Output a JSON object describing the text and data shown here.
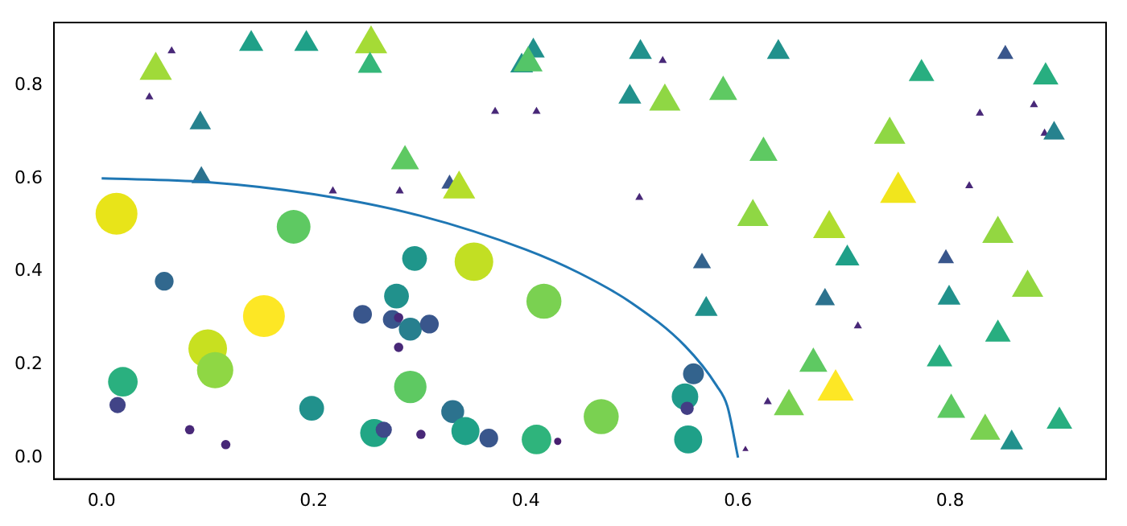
{
  "chart_data": {
    "type": "bubble",
    "xlim": [
      -0.045,
      0.947
    ],
    "ylim": [
      -0.046,
      0.935
    ],
    "xticks": [
      {
        "value": 0,
        "label": "0.0"
      },
      {
        "value": 0.2,
        "label": "0.2"
      },
      {
        "value": 0.4,
        "label": "0.4"
      },
      {
        "value": 0.6,
        "label": "0.6"
      },
      {
        "value": 0.8,
        "label": "0.8"
      }
    ],
    "yticks": [
      {
        "value": 0,
        "label": "0.0"
      },
      {
        "value": 0.2,
        "label": "0.2"
      },
      {
        "value": 0.4,
        "label": "0.4"
      },
      {
        "value": 0.6,
        "label": "0.6"
      },
      {
        "value": 0.8,
        "label": "0.8"
      }
    ],
    "grid": false,
    "legend": false,
    "series": [
      {
        "marker": "circle",
        "x": [
          0.014,
          0.059,
          0.153,
          0.1,
          0.107,
          0.02,
          0.015,
          0.083,
          0.117,
          0.181,
          0.198,
          0.246,
          0.295,
          0.278,
          0.274,
          0.28,
          0.291,
          0.309,
          0.28,
          0.351,
          0.417,
          0.291,
          0.331,
          0.343,
          0.257,
          0.266,
          0.301,
          0.365,
          0.41,
          0.43,
          0.471,
          0.558,
          0.55,
          0.552,
          0.553
        ],
        "values": [
          0.524,
          0.379,
          0.304,
          0.234,
          0.188,
          0.163,
          0.113,
          0.06,
          0.028,
          0.496,
          0.106,
          0.308,
          0.428,
          0.347,
          0.297,
          0.301,
          0.276,
          0.287,
          0.237,
          0.421,
          0.336,
          0.152,
          0.099,
          0.057,
          0.053,
          0.06,
          0.05,
          0.042,
          0.039,
          0.035,
          0.088,
          0.18,
          0.131,
          0.106,
          0.039
        ],
        "sizes": [
          1,
          0.2,
          1,
          0.85,
          0.75,
          0.5,
          0.15,
          0.05,
          0.05,
          0.65,
          0.35,
          0.2,
          0.35,
          0.35,
          0.2,
          0.05,
          0.3,
          0.2,
          0.05,
          0.85,
          0.7,
          0.6,
          0.3,
          0.45,
          0.45,
          0.15,
          0.05,
          0.2,
          0.5,
          0.03,
          0.7,
          0.25,
          0.4,
          0.1,
          0.45
        ],
        "colors": [
          "#e8e419",
          "#31688e",
          "#fde725",
          "#c8e020",
          "#8fd744",
          "#2ab07f",
          "#414487",
          "#482878",
          "#482878",
          "#5ec962",
          "#21918c",
          "#39568c",
          "#1f968b",
          "#21918c",
          "#39568c",
          "#482878",
          "#277f8e",
          "#39568c",
          "#482878",
          "#c2df23",
          "#7ad151",
          "#5ec962",
          "#2c728e",
          "#1fa187",
          "#21a685",
          "#3e4a89",
          "#482878",
          "#39568c",
          "#2fb47c",
          "#481f70",
          "#7ad151",
          "#33638d",
          "#1f9a8a",
          "#433e85",
          "#1fa088"
        ]
      },
      {
        "marker": "triangle",
        "x": [
          0.051,
          0.066,
          0.045,
          0.093,
          0.094,
          0.141,
          0.193,
          0.254,
          0.253,
          0.407,
          0.396,
          0.402,
          0.371,
          0.41,
          0.286,
          0.218,
          0.281,
          0.328,
          0.337,
          0.508,
          0.529,
          0.498,
          0.531,
          0.586,
          0.638,
          0.624,
          0.507,
          0.614,
          0.686,
          0.773,
          0.743,
          0.751,
          0.852,
          0.89,
          0.828,
          0.879,
          0.889,
          0.898,
          0.818,
          0.845,
          0.566,
          0.57,
          0.703,
          0.796,
          0.682,
          0.713,
          0.799,
          0.873,
          0.845,
          0.671,
          0.692,
          0.79,
          0.648,
          0.628,
          0.607,
          0.801,
          0.833,
          0.858,
          0.903
        ],
        "values": [
          0.832,
          0.874,
          0.775,
          0.719,
          0.602,
          0.889,
          0.889,
          0.889,
          0.842,
          0.874,
          0.842,
          0.848,
          0.744,
          0.744,
          0.637,
          0.573,
          0.573,
          0.588,
          0.577,
          0.871,
          0.853,
          0.775,
          0.765,
          0.786,
          0.871,
          0.655,
          0.559,
          0.517,
          0.492,
          0.825,
          0.694,
          0.57,
          0.867,
          0.818,
          0.74,
          0.758,
          0.697,
          0.697,
          0.584,
          0.481,
          0.418,
          0.319,
          0.428,
          0.428,
          0.34,
          0.283,
          0.343,
          0.365,
          0.265,
          0.202,
          0.145,
          0.212,
          0.11,
          0.12,
          0.018,
          0.103,
          0.057,
          0.032,
          0.078
        ],
        "sizes": [
          0.33,
          0.021,
          0.021,
          0.145,
          0.124,
          0.186,
          0.186,
          0.33,
          0.186,
          0.165,
          0.165,
          0.268,
          0.021,
          0.021,
          0.248,
          0.021,
          0.021,
          0.083,
          0.33,
          0.165,
          0.021,
          0.165,
          0.31,
          0.248,
          0.165,
          0.248,
          0.021,
          0.31,
          0.33,
          0.207,
          0.31,
          0.413,
          0.083,
          0.207,
          0.021,
          0.021,
          0.021,
          0.145,
          0.021,
          0.31,
          0.103,
          0.165,
          0.186,
          0.083,
          0.124,
          0.021,
          0.165,
          0.31,
          0.207,
          0.248,
          0.413,
          0.207,
          0.289,
          0.021,
          0.012,
          0.248,
          0.289,
          0.165,
          0.207
        ],
        "colors": [
          "#a0da39",
          "#482878",
          "#482878",
          "#26828e",
          "#2c728e",
          "#1fa088",
          "#1fa088",
          "#a5db36",
          "#35b779",
          "#21918c",
          "#21918c",
          "#54c568",
          "#482878",
          "#482878",
          "#5ec962",
          "#482878",
          "#482878",
          "#39568c",
          "#b5de2b",
          "#21918c",
          "#482878",
          "#21918c",
          "#8fd744",
          "#5ec962",
          "#21918c",
          "#5ec962",
          "#482878",
          "#8fd744",
          "#b0dd2f",
          "#28ae80",
          "#8fd744",
          "#f1e51d",
          "#39568c",
          "#28ae80",
          "#482878",
          "#482878",
          "#482878",
          "#26828e",
          "#482878",
          "#93d741",
          "#33638d",
          "#21918c",
          "#1fa088",
          "#39568c",
          "#2c728e",
          "#482878",
          "#21918c",
          "#93d741",
          "#28ae80",
          "#5ec962",
          "#fde725",
          "#28ae80",
          "#7ad151",
          "#482878",
          "#481f70",
          "#5ec962",
          "#7ad151",
          "#21918c",
          "#28ae80"
        ]
      },
      {
        "type": "line",
        "marker": "none",
        "color": "#1f77b4",
        "x": [
          0,
          0.1,
          0.2,
          0.3,
          0.4,
          0.45,
          0.5,
          0.55,
          0.58,
          0.59,
          0.6
        ],
        "values": [
          0.6,
          0.592,
          0.566,
          0.52,
          0.447,
          0.397,
          0.332,
          0.24,
          0.154,
          0.11,
          0
        ]
      }
    ]
  }
}
